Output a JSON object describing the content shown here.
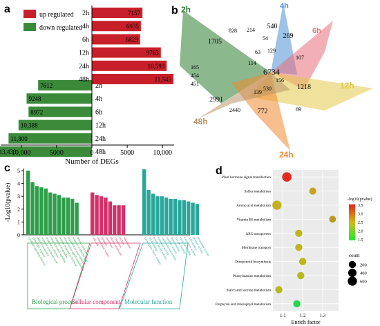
{
  "panels": {
    "a": "a",
    "b": "b",
    "c": "c",
    "d": "d"
  },
  "chart_data": [
    {
      "type": "bar",
      "panel": "a",
      "categories": [
        "2h",
        "4h",
        "6h",
        "12h",
        "24h",
        "48h"
      ],
      "series": [
        {
          "name": "up regulated",
          "color": "#c8202a",
          "values": [
            7157,
            6935,
            6829,
            9763,
            10593,
            11545
          ],
          "value_labels": [
            "7157",
            "6935",
            "6829",
            "9763",
            "10,593",
            "11,545"
          ]
        },
        {
          "name": "down regulated",
          "color": "#3a8a3a",
          "values": [
            7612,
            9248,
            8972,
            10388,
            11800,
            13433
          ],
          "value_labels": [
            "7612",
            "9248",
            "8972",
            "10,388",
            "11,800",
            "13,433"
          ]
        }
      ],
      "xlabel": "Number of DEGs",
      "xticks": [
        "10,000",
        "5000",
        "0",
        "5000",
        "10,000"
      ],
      "xlim": [
        -13433,
        11545
      ],
      "legend_position": "top-left"
    },
    {
      "type": "venn",
      "panel": "b",
      "sets": [
        {
          "name": "2h",
          "color": "#2e7d32"
        },
        {
          "name": "4h",
          "color": "#4f8fd6"
        },
        {
          "name": "6h",
          "color": "#e8707a"
        },
        {
          "name": "12h",
          "color": "#e3c84a"
        },
        {
          "name": "24h",
          "color": "#f08a30"
        },
        {
          "name": "48h",
          "color": "#b8956a"
        }
      ],
      "region_counts": [
        "540",
        "214",
        "269",
        "828",
        "1705",
        "63",
        "54",
        "129",
        "107",
        "114",
        "6734",
        "165",
        "454",
        "451",
        "156",
        "1218",
        "139",
        "530",
        "2991",
        "2440",
        "772",
        "69"
      ]
    },
    {
      "type": "bar",
      "panel": "c",
      "ylabel": "-Log10(pvalue)",
      "ylim": [
        0,
        5
      ],
      "yticks": [
        "0",
        "1",
        "2",
        "3",
        "4",
        "5"
      ],
      "groups": [
        {
          "name": "Biological process",
          "color": "#2e9e4a",
          "values": [
            5.0,
            4.1,
            3.8,
            3.7,
            3.6,
            3.3,
            3.2,
            3.1,
            2.9,
            2.9,
            2.8,
            2.5
          ],
          "terms": [
            "cytokinin signaling pathway",
            "gibberellin response",
            "signal transduction",
            "response to jasmonic acid",
            "response to ethylene",
            "auxin-activated signaling",
            "response to stimulus",
            "cellular response to hormone",
            "phosphorelay signal transduction",
            "regulation of transcription",
            "response to abscisic acid",
            "defense response"
          ]
        },
        {
          "name": "Cellular component",
          "color": "#d4306a",
          "values": [
            3.3,
            3.1,
            3.0,
            2.9,
            2.6,
            2.3,
            2.3,
            2.3
          ],
          "terms": [
            "cell wall",
            "extracellular region",
            "apoplast",
            "membrane",
            "plasma membrane",
            "cytoplasm",
            "nucleus",
            "chloroplast"
          ]
        },
        {
          "name": "Molecular function",
          "color": "#2aa79a",
          "values": [
            5.1,
            3.5,
            3.2,
            3.0,
            3.0,
            2.9,
            2.8,
            2.8,
            2.7,
            2.7,
            2.6,
            2.5,
            2.4
          ],
          "terms": [
            "transcription factor activity",
            "DNA binding",
            "protein kinase activity",
            "hydrolase activity",
            "oxidoreductase activity",
            "catalytic activity",
            "heme binding",
            "iron ion binding",
            "metal ion binding",
            "transferase activity",
            "ATP binding",
            "receptor activity",
            "peroxidase activity"
          ]
        }
      ]
    },
    {
      "type": "scatter",
      "panel": "d",
      "xlabel": "Enrich factor",
      "xlim": [
        1.05,
        1.38
      ],
      "xticks": [
        1.1,
        1.2,
        1.3
      ],
      "categories": [
        "Plant hormone signal transduction",
        "Sulfur metabolism",
        "Amino acid metabolism",
        "Vitamin B6 metabolism",
        "ABC transporters",
        "Membrane transport",
        "Diterpenoid biosynthesis",
        "Phenylalanine metabolism",
        "Starch and sucrose metabolism",
        "Porphyrin and chlorophyll metabolism"
      ],
      "points": [
        {
          "term": "Plant hormone signal transduction",
          "x": 1.12,
          "log_p": 3.5,
          "count": 650,
          "color": "#e82a1e"
        },
        {
          "term": "Sulfur metabolism",
          "x": 1.25,
          "log_p": 2.8,
          "count": 180,
          "color": "#c9a322"
        },
        {
          "term": "Amino acid metabolism",
          "x": 1.07,
          "log_p": 2.6,
          "count": 600,
          "color": "#c3b020"
        },
        {
          "term": "Vitamin B6 metabolism",
          "x": 1.35,
          "log_p": 2.7,
          "count": 150,
          "color": "#b99a22"
        },
        {
          "term": "ABC transporters",
          "x": 1.18,
          "log_p": 2.4,
          "count": 200,
          "color": "#c1b41e"
        },
        {
          "term": "Membrane transport",
          "x": 1.18,
          "log_p": 2.4,
          "count": 200,
          "color": "#c1b41e"
        },
        {
          "term": "Diterpenoid biosynthesis",
          "x": 1.2,
          "log_p": 2.3,
          "count": 200,
          "color": "#b9b81c"
        },
        {
          "term": "Phenylalanine metabolism",
          "x": 1.19,
          "log_p": 2.3,
          "count": 200,
          "color": "#b9b81c"
        },
        {
          "term": "Starch and sucrose metabolism",
          "x": 1.08,
          "log_p": 2.3,
          "count": 200,
          "color": "#b3bb1c"
        },
        {
          "term": "Porphyrin and chlorophyll metabolism",
          "x": 1.17,
          "log_p": 1.5,
          "count": 200,
          "color": "#22d84a"
        }
      ],
      "colorbar": {
        "title": "-log10(pvalue)",
        "ticks": [
          "3.5",
          "3.0",
          "2.5",
          "2.0",
          "1.5"
        ],
        "range": [
          1.5,
          3.5
        ],
        "colors": [
          "#e8221b",
          "#d0bd18",
          "#22e82e"
        ]
      },
      "size_legend": {
        "title": "count",
        "values": [
          "200",
          "400",
          "600"
        ]
      }
    }
  ]
}
